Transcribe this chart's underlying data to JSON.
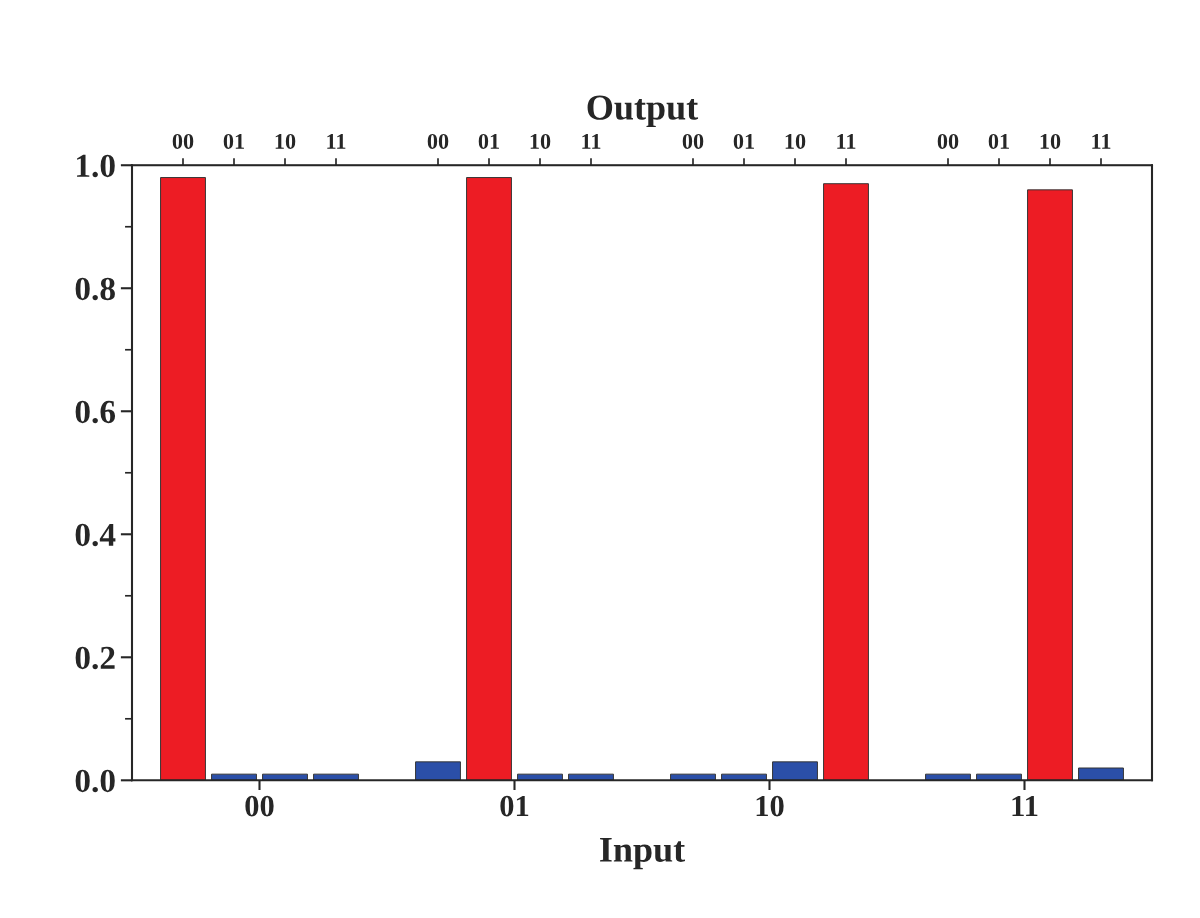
{
  "chart_data": {
    "type": "bar",
    "xlabel": "Input",
    "x2label": "Output",
    "categories": [
      "00",
      "01",
      "10",
      "11"
    ],
    "series": [
      {
        "name": "00",
        "colors": [
          "#ed1c24",
          "#2b4fa8",
          "#2b4fa8",
          "#2b4fa8"
        ],
        "values": [
          0.98,
          0.03,
          0.01,
          0.01
        ]
      },
      {
        "name": "01",
        "colors": [
          "#2b4fa8",
          "#ed1c24",
          "#2b4fa8",
          "#2b4fa8"
        ],
        "values": [
          0.01,
          0.98,
          0.01,
          0.01
        ]
      },
      {
        "name": "10",
        "colors": [
          "#2b4fa8",
          "#2b4fa8",
          "#2b4fa8",
          "#ed1c24"
        ],
        "values": [
          0.01,
          0.01,
          0.03,
          0.96
        ]
      },
      {
        "name": "11",
        "colors": [
          "#2b4fa8",
          "#2b4fa8",
          "#ed1c24",
          "#2b4fa8"
        ],
        "values": [
          0.01,
          0.01,
          0.97,
          0.02
        ]
      }
    ],
    "ylim": [
      0,
      1.0
    ],
    "yticks": [
      {
        "value": 0,
        "label": "0.0"
      },
      {
        "value": 0.2,
        "label": "0.2"
      },
      {
        "value": 0.4,
        "label": "0.4"
      },
      {
        "value": 0.6,
        "label": "0.6"
      },
      {
        "value": 0.8,
        "label": "0.8"
      },
      {
        "value": 1.0,
        "label": "1.0"
      }
    ],
    "grid": false,
    "legend": false
  }
}
